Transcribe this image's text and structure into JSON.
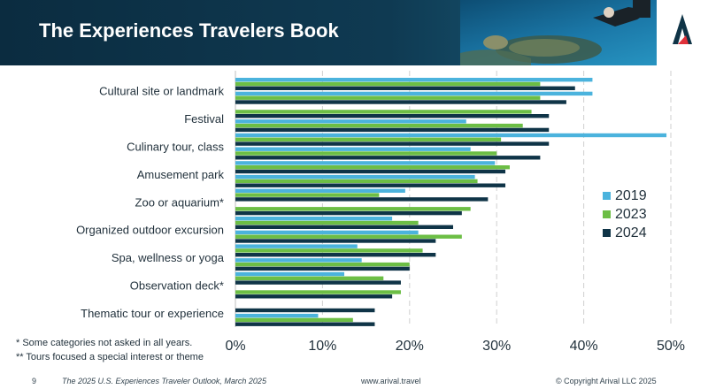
{
  "header": {
    "title": "The Experiences Travelers Book",
    "logo_icon": "arival-logo-icon",
    "photo": "sea-turtle-diver-photo"
  },
  "colors": {
    "s2019": "#4bb3dd",
    "s2023": "#6cbe45",
    "s2024": "#0f3447",
    "header_bg": "#0b2c40",
    "logo_red": "#e0313a"
  },
  "chart_data": {
    "type": "bar",
    "orientation": "horizontal",
    "xlim": [
      0,
      50
    ],
    "x_ticks": [
      "0%",
      "10%",
      "20%",
      "30%",
      "40%",
      "50%"
    ],
    "grid": true,
    "legend_position": "right",
    "visible_labels": [
      "Cultural site or landmark",
      "Festival",
      "Culinary tour, class",
      "Amusement park",
      "Zoo or aquarium*",
      "Organized outdoor excursion",
      "Spa, wellness or yoga",
      "Observation deck*",
      "Thematic tour or experience"
    ],
    "label_after_group": [
      1,
      3,
      5,
      7,
      9,
      11,
      13,
      15,
      17
    ],
    "series": [
      {
        "name": "2019",
        "values": [
          41,
          41,
          0,
          26.5,
          49.5,
          27,
          29.8,
          27.5,
          19.5,
          0,
          18,
          21,
          14,
          14.5,
          12.5,
          0,
          0,
          9.5
        ]
      },
      {
        "name": "2023",
        "values": [
          35,
          35,
          34,
          33,
          30.5,
          30,
          31.5,
          27.8,
          16.5,
          27,
          21,
          26,
          21.5,
          20,
          17,
          19,
          0,
          13.5
        ]
      },
      {
        "name": "2024",
        "values": [
          39,
          38,
          36,
          36,
          36,
          35,
          31,
          31,
          29,
          26,
          25,
          23,
          23,
          20,
          19,
          18,
          16,
          16
        ]
      }
    ]
  },
  "footnotes": [
    "*   Some categories not asked in all years.",
    "**  Tours focused a special interest or theme"
  ],
  "footer": {
    "page_number": "9",
    "publication": "The 2025 U.S. Experiences Traveler Outlook, March 2025",
    "url": "www.arival.travel",
    "copyright": "© Copyright Arival LLC 2025"
  }
}
